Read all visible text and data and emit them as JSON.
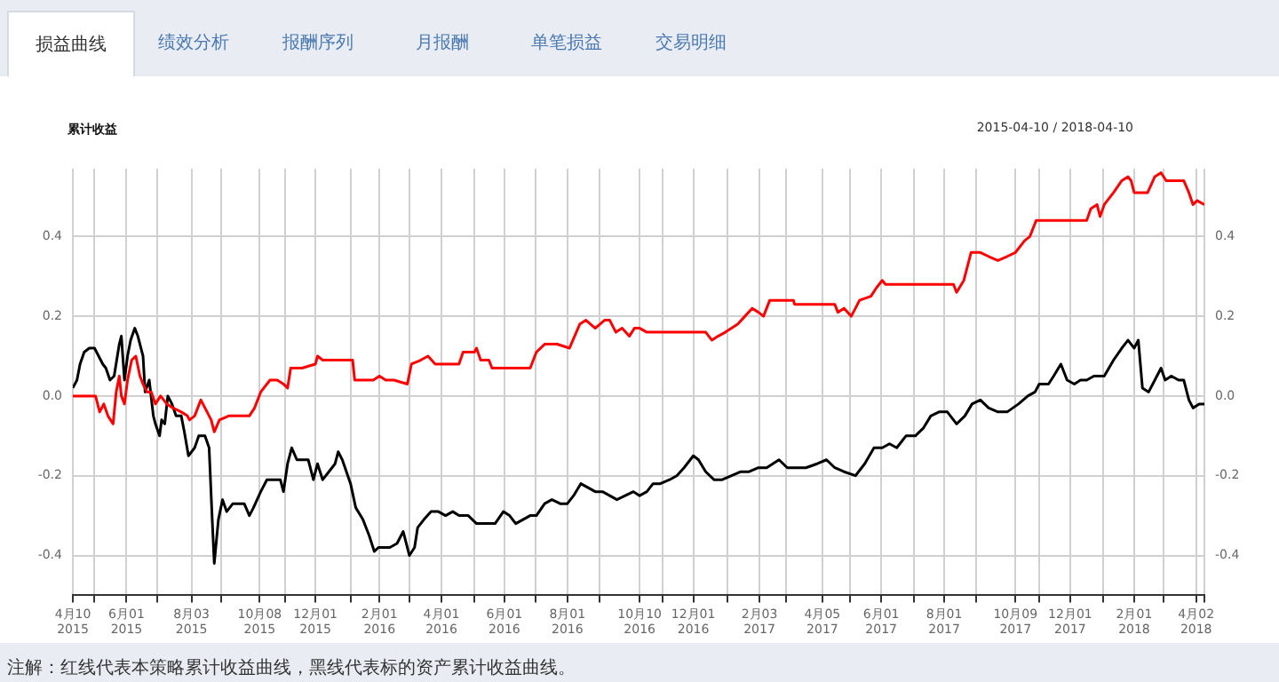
{
  "chart_data": {
    "type": "line",
    "title": "累计收益",
    "subtitle": "2015-04-10 / 2018-04-10",
    "annotations": [
      "损益曲线",
      "绩效分析",
      "报酬序列",
      "月报酬",
      "单笔损益",
      "交易明细",
      "注解：红线代表本策略累计收益曲线，黑线代表标的资产累计收益曲线。"
    ],
    "xlim": [
      "2015-04-10",
      "2018-04-10"
    ],
    "xticks": [
      {
        "value": "2015-04-10",
        "label": "4月10 2015"
      },
      {
        "value": "2015-05-01",
        "label": null
      },
      {
        "value": "2015-06-01",
        "label": "6月01 2015"
      },
      {
        "value": "2015-07-01",
        "label": null
      },
      {
        "value": "2015-08-03",
        "label": "8月03 2015"
      },
      {
        "value": "2015-09-01",
        "label": null
      },
      {
        "value": "2015-10-08",
        "label": "10月08 2015"
      },
      {
        "value": "2015-11-02",
        "label": null
      },
      {
        "value": "2015-12-01",
        "label": "12月01 2015"
      },
      {
        "value": "2016-01-04",
        "label": null
      },
      {
        "value": "2016-02-01",
        "label": "2月01 2016"
      },
      {
        "value": "2016-03-01",
        "label": null
      },
      {
        "value": "2016-04-01",
        "label": "4月01 2016"
      },
      {
        "value": "2016-05-03",
        "label": null
      },
      {
        "value": "2016-06-01",
        "label": "6月01 2016"
      },
      {
        "value": "2016-07-01",
        "label": null
      },
      {
        "value": "2016-08-01",
        "label": "8月01 2016"
      },
      {
        "value": "2016-09-01",
        "label": null
      },
      {
        "value": "2016-10-10",
        "label": "10月10 2016"
      },
      {
        "value": "2016-11-01",
        "label": null
      },
      {
        "value": "2016-12-01",
        "label": "12月01 2016"
      },
      {
        "value": "2017-01-03",
        "label": null
      },
      {
        "value": "2017-02-03",
        "label": "2月03 2017"
      },
      {
        "value": "2017-03-01",
        "label": null
      },
      {
        "value": "2017-04-05",
        "label": "4月05 2017"
      },
      {
        "value": "2017-05-02",
        "label": null
      },
      {
        "value": "2017-06-01",
        "label": "6月01 2017"
      },
      {
        "value": "2017-07-03",
        "label": null
      },
      {
        "value": "2017-08-01",
        "label": "8月01 2017"
      },
      {
        "value": "2017-09-01",
        "label": null
      },
      {
        "value": "2017-10-09",
        "label": "10月09 2017"
      },
      {
        "value": "2017-11-01",
        "label": null
      },
      {
        "value": "2017-12-01",
        "label": "12月01 2017"
      },
      {
        "value": "2018-01-02",
        "label": null
      },
      {
        "value": "2018-02-01",
        "label": "2月01 2018"
      },
      {
        "value": "2018-03-01",
        "label": null
      },
      {
        "value": "2018-04-02",
        "label": "4月02 2018"
      },
      {
        "value": "2018-04-10",
        "label": null
      }
    ],
    "ylim": [
      -0.5,
      0.57
    ],
    "yticks": [
      -0.4,
      -0.2,
      {
        "value": 0,
        "label": "0.0"
      },
      0.2,
      0.4
    ],
    "y2lim": [
      -0.5,
      0.57
    ],
    "y2ticks": [
      -0.4,
      -0.2,
      {
        "value": 0,
        "label": "0.0"
      },
      0.2,
      0.4
    ],
    "grid": true,
    "series": [
      {
        "color": "#ff0000",
        "x": [
          "2015-04-10",
          "2015-05-02",
          "2015-05-06",
          "2015-05-10",
          "2015-05-14",
          "2015-05-19",
          "2015-05-22",
          "2015-05-25",
          "2015-05-27",
          "2015-05-30",
          "2015-06-02",
          "2015-06-06",
          "2015-06-10",
          "2015-06-14",
          "2015-06-17",
          "2015-06-21",
          "2015-06-25",
          "2015-06-29",
          "2015-07-04",
          "2015-07-10",
          "2015-07-16",
          "2015-07-24",
          "2015-07-30",
          "2015-08-01",
          "2015-08-06",
          "2015-08-12",
          "2015-08-16",
          "2015-08-22",
          "2015-08-25",
          "2015-08-30",
          "2015-09-08",
          "2015-09-28",
          "2015-10-03",
          "2015-10-09",
          "2015-10-18",
          "2015-10-25",
          "2015-10-31",
          "2015-11-04",
          "2015-11-07",
          "2015-11-18",
          "2015-12-01",
          "2015-12-03",
          "2015-12-08",
          "2016-01-06",
          "2016-01-08",
          "2016-01-16",
          "2016-01-26",
          "2016-02-01",
          "2016-02-07",
          "2016-02-15",
          "2016-02-28",
          "2016-03-03",
          "2016-03-12",
          "2016-03-19",
          "2016-03-26",
          "2016-04-18",
          "2016-04-22",
          "2016-05-03",
          "2016-05-05",
          "2016-05-09",
          "2016-05-17",
          "2016-05-20",
          "2016-06-26",
          "2016-07-02",
          "2016-07-10",
          "2016-07-22",
          "2016-08-03",
          "2016-08-13",
          "2016-08-19",
          "2016-08-28",
          "2016-09-06",
          "2016-09-11",
          "2016-09-17",
          "2016-09-23",
          "2016-09-30",
          "2016-10-05",
          "2016-10-10",
          "2016-10-17",
          "2016-12-13",
          "2016-12-19",
          "2016-12-25",
          "2017-01-01",
          "2017-01-07",
          "2017-01-13",
          "2017-01-20",
          "2017-01-27",
          "2017-02-02",
          "2017-02-07",
          "2017-02-13",
          "2017-02-20",
          "2017-03-08",
          "2017-03-09",
          "2017-04-17",
          "2017-04-20",
          "2017-04-26",
          "2017-05-03",
          "2017-05-11",
          "2017-05-22",
          "2017-05-27",
          "2017-06-02",
          "2017-06-05",
          "2017-08-10",
          "2017-08-13",
          "2017-08-20",
          "2017-08-27",
          "2017-09-05",
          "2017-09-13",
          "2017-09-22",
          "2017-10-01",
          "2017-10-09",
          "2017-10-18",
          "2017-10-23",
          "2017-10-29",
          "2017-12-17",
          "2017-12-21",
          "2017-12-27",
          "2017-12-30",
          "2018-01-03",
          "2018-01-12",
          "2018-01-20",
          "2018-01-26",
          "2018-01-29",
          "2018-02-01",
          "2018-02-14",
          "2018-02-21",
          "2018-02-27",
          "2018-03-04",
          "2018-03-21",
          "2018-03-26",
          "2018-03-30",
          "2018-04-03",
          "2018-04-10"
        ],
        "values": [
          0.0,
          0.0,
          -0.04,
          -0.02,
          -0.05,
          -0.07,
          0.01,
          0.05,
          0.0,
          -0.02,
          0.04,
          0.09,
          0.1,
          0.05,
          0.03,
          0.01,
          0.01,
          -0.02,
          0.0,
          -0.02,
          -0.03,
          -0.04,
          -0.05,
          -0.06,
          -0.05,
          -0.01,
          -0.03,
          -0.06,
          -0.09,
          -0.06,
          -0.05,
          -0.05,
          -0.03,
          0.01,
          0.04,
          0.04,
          0.03,
          0.02,
          0.07,
          0.07,
          0.08,
          0.1,
          0.09,
          0.09,
          0.04,
          0.04,
          0.04,
          0.05,
          0.04,
          0.04,
          0.03,
          0.08,
          0.09,
          0.1,
          0.08,
          0.08,
          0.11,
          0.11,
          0.12,
          0.09,
          0.09,
          0.07,
          0.07,
          0.11,
          0.13,
          0.13,
          0.12,
          0.18,
          0.19,
          0.17,
          0.19,
          0.19,
          0.16,
          0.17,
          0.15,
          0.17,
          0.17,
          0.16,
          0.16,
          0.14,
          0.15,
          0.16,
          0.17,
          0.18,
          0.2,
          0.22,
          0.21,
          0.2,
          0.24,
          0.24,
          0.24,
          0.23,
          0.23,
          0.21,
          0.22,
          0.2,
          0.24,
          0.25,
          0.27,
          0.29,
          0.28,
          0.28,
          0.26,
          0.29,
          0.36,
          0.36,
          0.35,
          0.34,
          0.35,
          0.36,
          0.39,
          0.4,
          0.44,
          0.44,
          0.47,
          0.48,
          0.45,
          0.48,
          0.51,
          0.54,
          0.55,
          0.54,
          0.51,
          0.51,
          0.55,
          0.56,
          0.54,
          0.54,
          0.51,
          0.48,
          0.49,
          0.48
        ]
      },
      {
        "color": "#000000",
        "x": [
          "2015-04-10",
          "2015-04-14",
          "2015-04-17",
          "2015-04-21",
          "2015-04-26",
          "2015-05-01",
          "2015-05-05",
          "2015-05-09",
          "2015-05-12",
          "2015-05-16",
          "2015-05-20",
          "2015-05-25",
          "2015-05-27",
          "2015-05-30",
          "2015-06-02",
          "2015-06-05",
          "2015-06-09",
          "2015-06-12",
          "2015-06-17",
          "2015-06-19",
          "2015-06-23",
          "2015-06-27",
          "2015-06-29",
          "2015-07-03",
          "2015-07-05",
          "2015-07-08",
          "2015-07-11",
          "2015-07-15",
          "2015-07-19",
          "2015-07-24",
          "2015-07-27",
          "2015-07-31",
          "2015-08-06",
          "2015-08-10",
          "2015-08-16",
          "2015-08-20",
          "2015-08-23",
          "2015-08-25",
          "2015-08-29",
          "2015-09-02",
          "2015-09-06",
          "2015-09-12",
          "2015-09-17",
          "2015-09-23",
          "2015-09-28",
          "2015-10-02",
          "2015-10-09",
          "2015-10-15",
          "2015-10-22",
          "2015-10-28",
          "2015-10-31",
          "2015-11-04",
          "2015-11-08",
          "2015-11-13",
          "2015-11-18",
          "2015-11-24",
          "2015-11-29",
          "2015-12-03",
          "2015-12-08",
          "2015-12-14",
          "2015-12-20",
          "2015-12-23",
          "2015-12-27",
          "2015-12-31",
          "2016-01-04",
          "2016-01-09",
          "2016-01-16",
          "2016-01-22",
          "2016-01-27",
          "2016-01-31",
          "2016-02-04",
          "2016-02-11",
          "2016-02-18",
          "2016-02-24",
          "2016-03-01",
          "2016-03-06",
          "2016-03-09",
          "2016-03-15",
          "2016-03-22",
          "2016-03-29",
          "2016-04-05",
          "2016-04-12",
          "2016-04-18",
          "2016-04-27",
          "2016-05-05",
          "2016-05-14",
          "2016-05-23",
          "2016-05-31",
          "2016-06-06",
          "2016-06-12",
          "2016-06-19",
          "2016-06-26",
          "2016-07-02",
          "2016-07-10",
          "2016-07-17",
          "2016-07-25",
          "2016-08-01",
          "2016-08-07",
          "2016-08-14",
          "2016-08-21",
          "2016-08-28",
          "2016-09-04",
          "2016-09-11",
          "2016-09-18",
          "2016-09-26",
          "2016-10-04",
          "2016-10-10",
          "2016-10-17",
          "2016-10-23",
          "2016-10-30",
          "2016-11-08",
          "2016-11-15",
          "2016-11-22",
          "2016-12-01",
          "2016-12-06",
          "2016-12-13",
          "2016-12-21",
          "2016-12-29",
          "2017-01-07",
          "2017-01-16",
          "2017-01-24",
          "2017-02-02",
          "2017-02-10",
          "2017-02-22",
          "2017-03-02",
          "2017-03-11",
          "2017-03-20",
          "2017-03-31",
          "2017-04-09",
          "2017-04-17",
          "2017-04-26",
          "2017-05-07",
          "2017-05-16",
          "2017-05-25",
          "2017-06-02",
          "2017-06-09",
          "2017-06-16",
          "2017-06-25",
          "2017-07-04",
          "2017-07-12",
          "2017-07-19",
          "2017-07-27",
          "2017-08-04",
          "2017-08-13",
          "2017-08-21",
          "2017-08-28",
          "2017-09-05",
          "2017-09-13",
          "2017-09-22",
          "2017-10-01",
          "2017-10-12",
          "2017-10-21",
          "2017-10-28",
          "2017-11-01",
          "2017-11-10",
          "2017-11-15",
          "2017-11-22",
          "2017-11-28",
          "2017-12-05",
          "2017-12-11",
          "2017-12-17",
          "2017-12-24",
          "2018-01-03",
          "2018-01-12",
          "2018-01-20",
          "2018-01-26",
          "2018-02-01",
          "2018-02-05",
          "2018-02-09",
          "2018-02-15",
          "2018-02-21",
          "2018-02-27",
          "2018-03-03",
          "2018-03-09",
          "2018-03-16",
          "2018-03-21",
          "2018-03-26",
          "2018-03-30",
          "2018-04-05",
          "2018-04-10"
        ],
        "values": [
          0.02,
          0.04,
          0.08,
          0.11,
          0.12,
          0.12,
          0.1,
          0.08,
          0.07,
          0.04,
          0.05,
          0.13,
          0.15,
          0.04,
          0.1,
          0.14,
          0.17,
          0.15,
          0.1,
          0.01,
          0.04,
          -0.05,
          -0.07,
          -0.1,
          -0.06,
          -0.07,
          0.0,
          -0.02,
          -0.05,
          -0.05,
          -0.09,
          -0.15,
          -0.13,
          -0.1,
          -0.1,
          -0.13,
          -0.31,
          -0.42,
          -0.31,
          -0.26,
          -0.29,
          -0.27,
          -0.27,
          -0.27,
          -0.3,
          -0.28,
          -0.24,
          -0.21,
          -0.21,
          -0.21,
          -0.24,
          -0.17,
          -0.13,
          -0.16,
          -0.16,
          -0.16,
          -0.21,
          -0.17,
          -0.21,
          -0.19,
          -0.17,
          -0.14,
          -0.16,
          -0.19,
          -0.22,
          -0.28,
          -0.31,
          -0.35,
          -0.39,
          -0.38,
          -0.38,
          -0.38,
          -0.37,
          -0.34,
          -0.4,
          -0.38,
          -0.33,
          -0.31,
          -0.29,
          -0.29,
          -0.3,
          -0.29,
          -0.3,
          -0.3,
          -0.32,
          -0.32,
          -0.32,
          -0.29,
          -0.3,
          -0.32,
          -0.31,
          -0.3,
          -0.3,
          -0.27,
          -0.26,
          -0.27,
          -0.27,
          -0.25,
          -0.22,
          -0.23,
          -0.24,
          -0.24,
          -0.25,
          -0.26,
          -0.25,
          -0.24,
          -0.25,
          -0.24,
          -0.22,
          -0.22,
          -0.21,
          -0.2,
          -0.18,
          -0.15,
          -0.16,
          -0.19,
          -0.21,
          -0.21,
          -0.2,
          -0.19,
          -0.19,
          -0.18,
          -0.18,
          -0.16,
          -0.18,
          -0.18,
          -0.18,
          -0.17,
          -0.16,
          -0.18,
          -0.19,
          -0.2,
          -0.17,
          -0.13,
          -0.13,
          -0.12,
          -0.13,
          -0.1,
          -0.1,
          -0.08,
          -0.05,
          -0.04,
          -0.04,
          -0.07,
          -0.05,
          -0.02,
          -0.01,
          -0.03,
          -0.04,
          -0.04,
          -0.02,
          0.0,
          0.01,
          0.03,
          0.03,
          0.05,
          0.08,
          0.04,
          0.03,
          0.04,
          0.04,
          0.05,
          0.05,
          0.09,
          0.12,
          0.14,
          0.12,
          0.14,
          0.02,
          0.01,
          0.04,
          0.07,
          0.04,
          0.05,
          0.04,
          0.04,
          -0.01,
          -0.03,
          -0.02,
          -0.02
        ]
      }
    ]
  }
}
